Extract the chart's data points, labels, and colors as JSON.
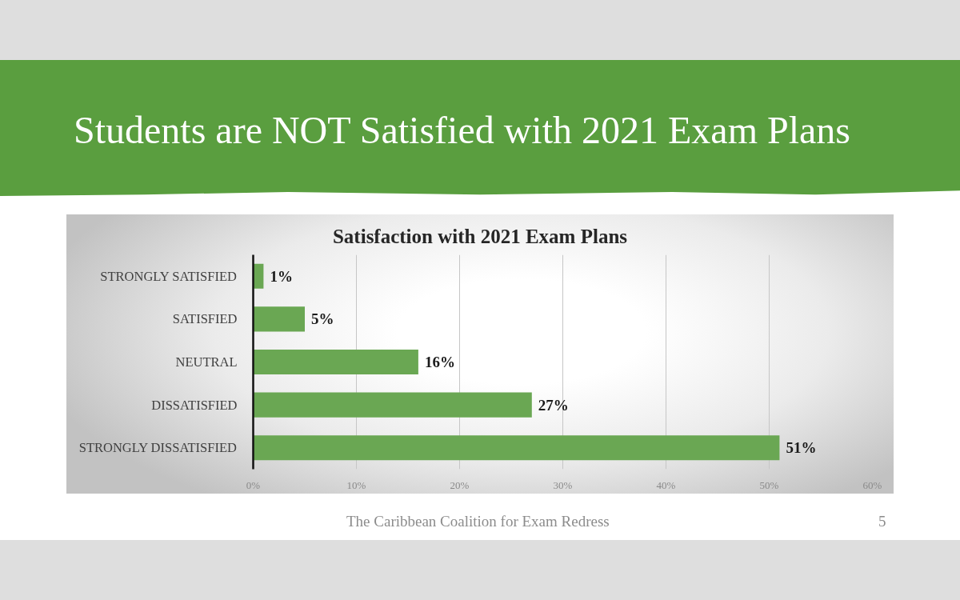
{
  "chart_data": {
    "type": "bar",
    "orientation": "horizontal",
    "title": "Students are NOT Satisfied with 2021 Exam Plans",
    "subtitle": "Satisfaction with 2021 Exam Plans",
    "categories": [
      "STRONGLY SATISFIED",
      "SATISFIED",
      "NEUTRAL",
      "DISSATISFIED",
      "STRONGLY DISSATISFIED"
    ],
    "values": [
      1,
      5,
      16,
      27,
      51
    ],
    "color": "#6aa753",
    "value_labels": [
      "1%",
      "5%",
      "16%",
      "27%",
      "51%"
    ],
    "xlim": [
      0,
      60
    ],
    "xticks": [
      {
        "value": 0,
        "label": "0%"
      },
      {
        "value": 10,
        "label": "10%"
      },
      {
        "value": 20,
        "label": "20%"
      },
      {
        "value": 30,
        "label": "30%"
      },
      {
        "value": 40,
        "label": "40%"
      },
      {
        "value": 50,
        "label": "50%"
      },
      {
        "value": 60,
        "label": "60%"
      }
    ],
    "grid": "x",
    "annotations": [
      "The Caribbean Coalition for Exam Redress",
      "5"
    ]
  }
}
